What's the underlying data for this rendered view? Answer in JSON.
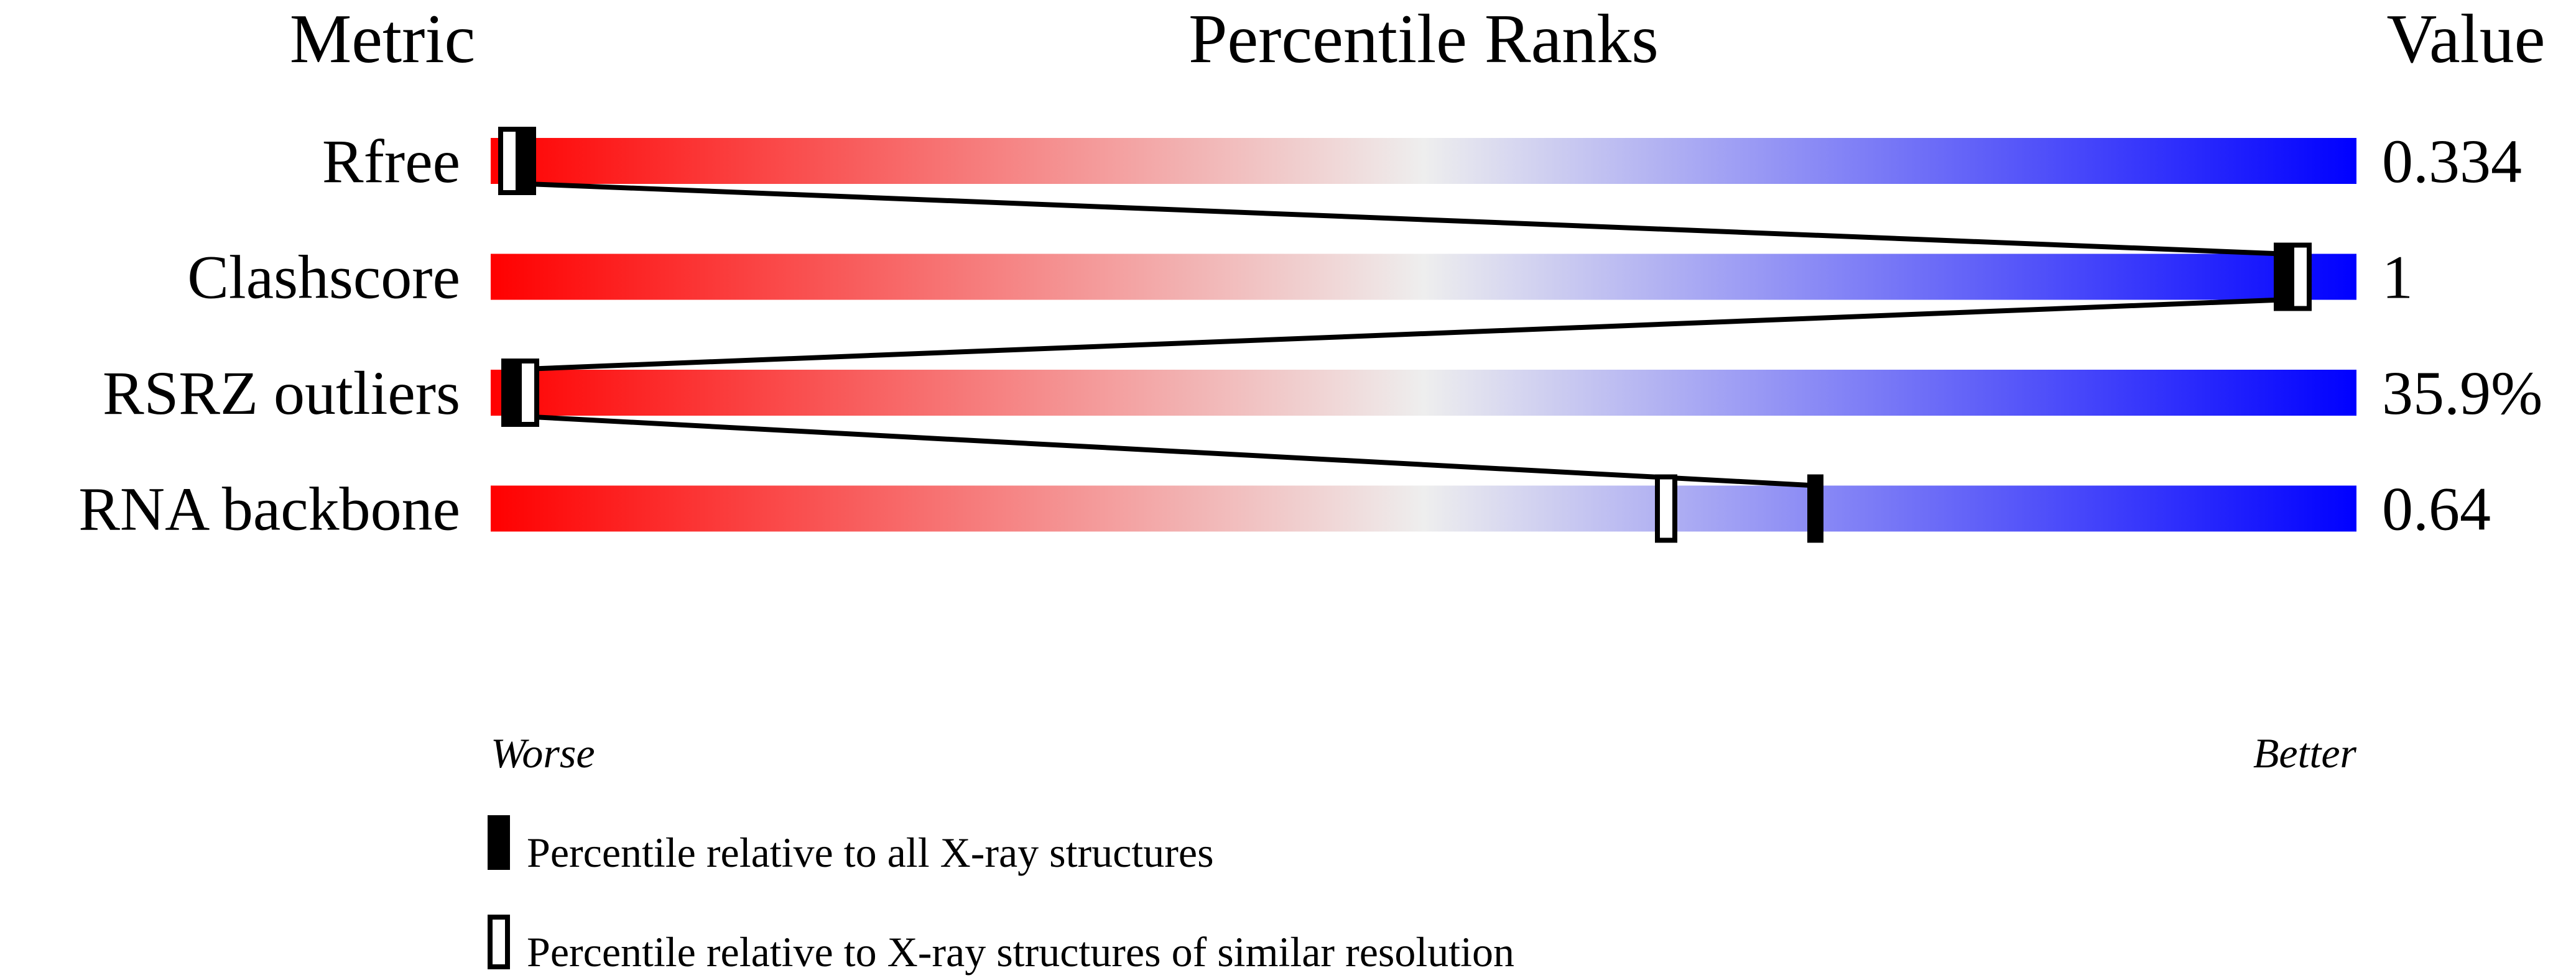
{
  "chart_data": {
    "type": "percentile-slider",
    "headers": {
      "metric": "Metric",
      "ranks": "Percentile Ranks",
      "value": "Value"
    },
    "xlim": [
      0,
      100
    ],
    "axis_labels": {
      "left": "Worse",
      "right": "Better"
    },
    "gradient_colors": [
      "#ff0000",
      "#eeeeee",
      "#0000ff"
    ],
    "rows": [
      {
        "metric": "Rfree",
        "value": "0.334",
        "percentile_all": 2,
        "percentile_similar": 1
      },
      {
        "metric": "Clashscore",
        "value": "1",
        "percentile_all": 96,
        "percentile_similar": 97
      },
      {
        "metric": "RSRZ outliers",
        "value": "35.9%",
        "percentile_all": 1,
        "percentile_similar": 2
      },
      {
        "metric": "RNA backbone",
        "value": "0.64",
        "percentile_all": 71,
        "percentile_similar": 63
      }
    ],
    "legend": [
      {
        "marker": "filled",
        "label": "Percentile relative to all X-ray structures"
      },
      {
        "marker": "open",
        "label": "Percentile relative to X-ray structures of similar resolution"
      }
    ]
  }
}
